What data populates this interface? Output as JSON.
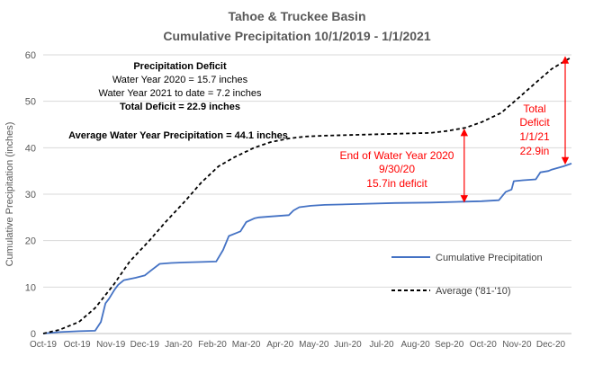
{
  "chart_data": {
    "type": "line",
    "title": "Tahoe & Truckee Basin",
    "subtitle": "Cumulative Precipitation 10/1/2019 - 1/1/2021",
    "xlabel": "",
    "ylabel": "Cumulative Precipitation (inches)",
    "ylim": [
      0,
      60
    ],
    "yticks": [
      0,
      10,
      20,
      30,
      40,
      50,
      60
    ],
    "xlim": [
      "2019-10-01",
      "2021-01-01"
    ],
    "xticks": [
      "Oct-19",
      "Oct-19",
      "Nov-19",
      "Dec-19",
      "Jan-20",
      "Feb-20",
      "Mar-20",
      "Apr-20",
      "May-20",
      "Jun-20",
      "Jul-20",
      "Aug-20",
      "Sep-20",
      "Oct-20",
      "Nov-20",
      "Dec-20"
    ],
    "grid": true,
    "legend_position": "bottom-right",
    "series": [
      {
        "name": "Cumulative Precipitation",
        "color": "#4472c4",
        "style": "solid",
        "x": [
          "2019-10-01",
          "2019-10-15",
          "2019-11-01",
          "2019-11-15",
          "2019-11-20",
          "2019-11-24",
          "2019-11-27",
          "2019-12-02",
          "2019-12-05",
          "2019-12-10",
          "2019-12-20",
          "2019-12-28",
          "2020-01-02",
          "2020-01-10",
          "2020-01-20",
          "2020-02-01",
          "2020-02-15",
          "2020-02-28",
          "2020-03-05",
          "2020-03-10",
          "2020-03-16",
          "2020-03-20",
          "2020-03-25",
          "2020-04-01",
          "2020-04-05",
          "2020-04-15",
          "2020-05-01",
          "2020-05-05",
          "2020-05-10",
          "2020-05-20",
          "2020-06-01",
          "2020-07-01",
          "2020-08-01",
          "2020-09-01",
          "2020-09-30",
          "2020-10-15",
          "2020-10-30",
          "2020-11-05",
          "2020-11-10",
          "2020-11-12",
          "2020-11-20",
          "2020-12-01",
          "2020-12-05",
          "2020-12-12",
          "2020-12-15",
          "2020-12-25",
          "2021-01-01"
        ],
        "y": [
          0,
          0.3,
          0.5,
          0.6,
          2.5,
          6.5,
          7.5,
          9.5,
          10.5,
          11.5,
          12,
          12.5,
          13.5,
          15,
          15.2,
          15.3,
          15.4,
          15.5,
          18,
          21,
          21.6,
          22,
          24,
          24.8,
          25,
          25.2,
          25.5,
          26.5,
          27.2,
          27.5,
          27.7,
          27.9,
          28.1,
          28.2,
          28.4,
          28.5,
          28.7,
          30.5,
          31,
          32.8,
          33,
          33.2,
          34.7,
          35,
          35.3,
          36,
          36.6
        ]
      },
      {
        "name": "Average ('81-'10)",
        "color": "#000000",
        "style": "dashed",
        "x": [
          "2019-10-01",
          "2019-10-15",
          "2019-11-01",
          "2019-11-15",
          "2019-12-01",
          "2019-12-15",
          "2020-01-01",
          "2020-01-15",
          "2020-02-01",
          "2020-02-15",
          "2020-03-01",
          "2020-03-15",
          "2020-04-01",
          "2020-04-15",
          "2020-05-01",
          "2020-05-15",
          "2020-06-01",
          "2020-07-01",
          "2020-08-01",
          "2020-09-01",
          "2020-09-15",
          "2020-10-01",
          "2020-10-15",
          "2020-11-01",
          "2020-11-15",
          "2020-12-01",
          "2020-12-15",
          "2021-01-01"
        ],
        "y": [
          0,
          0.8,
          2.5,
          5.5,
          10.5,
          15.5,
          20,
          24,
          28.5,
          32.5,
          36,
          38,
          40,
          41.2,
          42,
          42.4,
          42.6,
          42.8,
          43,
          43.2,
          43.6,
          44.3,
          45.5,
          47.5,
          50.5,
          54,
          57,
          59.5
        ]
      }
    ],
    "annotations": {
      "deficit_title": "Precipitation Deficit",
      "wy2020": "Water Year 2020 = 15.7 inches",
      "wy2021": "Water Year 2021 to date =  7.2 inches",
      "total": "Total Deficit = 22.9 inches",
      "average": "Average Water Year Precipitation = 44.1 inches",
      "end_wy_line1": "End of Water Year 2020",
      "end_wy_line2": "9/30/20",
      "end_wy_line3": "15.7in deficit",
      "total_def_line1": "Total",
      "total_def_line2": "Deficit",
      "total_def_line3": "1/1/21",
      "total_def_line4": "22.9in"
    },
    "arrows": [
      {
        "x": "2020-09-30",
        "y_from": 28.4,
        "y_to": 43.9
      },
      {
        "x": "2021-01-01",
        "y_from": 36.6,
        "y_to": 59.5
      }
    ]
  }
}
